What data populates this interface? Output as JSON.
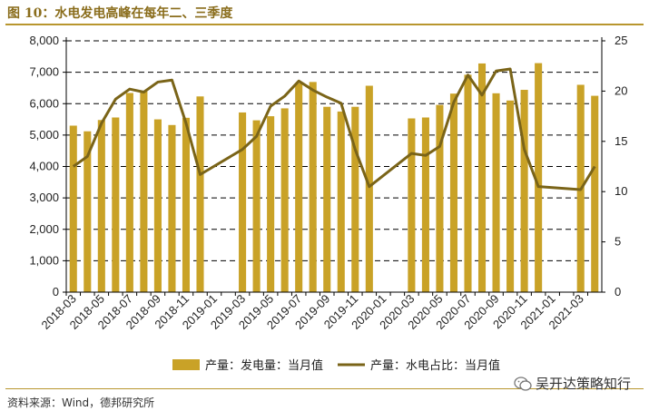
{
  "header": {
    "title": "图 10：水电发电高峰在每年二、三季度"
  },
  "footer": {
    "source": "资料来源：Wind，德邦研究所"
  },
  "watermark": {
    "text": "吴开达策略知行",
    "icon": "wechat-icon"
  },
  "colors": {
    "bar": "#c9a227",
    "line": "#7a6418",
    "accent": "#b8962e"
  },
  "chart_data": {
    "type": "bar",
    "title": "",
    "xlabel": "",
    "ylabel": "",
    "categories": [
      "2018-03",
      "2018-04",
      "2018-05",
      "2018-06",
      "2018-07",
      "2018-08",
      "2018-09",
      "2018-10",
      "2018-11",
      "2018-12",
      "2019-01",
      "2019-02",
      "2019-03",
      "2019-04",
      "2019-05",
      "2019-06",
      "2019-07",
      "2019-08",
      "2019-09",
      "2019-10",
      "2019-11",
      "2019-12",
      "2020-01",
      "2020-02",
      "2020-03",
      "2020-04",
      "2020-05",
      "2020-06",
      "2020-07",
      "2020-08",
      "2020-09",
      "2020-10",
      "2020-11",
      "2020-12",
      "2021-01",
      "2021-02",
      "2021-03",
      "2021-04"
    ],
    "x_tick_labels": [
      "2018-03",
      "2018-05",
      "2018-07",
      "2018-09",
      "2018-11",
      "2019-01",
      "2019-03",
      "2019-05",
      "2019-07",
      "2019-09",
      "2019-11",
      "2020-01",
      "2020-03",
      "2020-05",
      "2020-07",
      "2020-09",
      "2020-11",
      "2021-01",
      "2021-03"
    ],
    "ylim_left": [
      0,
      8000
    ],
    "yticks_left": [
      "0",
      "1,000",
      "2,000",
      "3,000",
      "4,000",
      "5,000",
      "6,000",
      "7,000",
      "8,000"
    ],
    "ylim_right": [
      0,
      25
    ],
    "yticks_right": [
      "0",
      "5",
      "10",
      "15",
      "20",
      "25"
    ],
    "grid": "horizontal-dashed",
    "legend_position": "bottom",
    "series": [
      {
        "name": "产量：发电量：当月值",
        "kind": "bar",
        "axis": "left",
        "values": [
          5300,
          5120,
          5480,
          5560,
          6340,
          6390,
          5500,
          5320,
          5550,
          6230,
          null,
          null,
          5720,
          5470,
          5600,
          5850,
          6650,
          6690,
          5900,
          5750,
          5900,
          6570,
          null,
          null,
          5530,
          5560,
          5960,
          6320,
          6920,
          7280,
          6330,
          6100,
          6440,
          7290,
          null,
          null,
          6600,
          6250
        ]
      },
      {
        "name": "产量：水电占比：当月值",
        "kind": "line",
        "axis": "right",
        "values": [
          12.5,
          13.5,
          16.8,
          19.2,
          20.2,
          19.9,
          20.9,
          21.1,
          16.8,
          11.7,
          null,
          null,
          14.2,
          15.5,
          18.5,
          19.5,
          21.0,
          20.1,
          19.4,
          18.8,
          14.2,
          10.5,
          null,
          null,
          13.8,
          13.6,
          14.5,
          18.9,
          21.6,
          19.6,
          22.0,
          22.2,
          14.2,
          10.5,
          null,
          null,
          10.2,
          12.5
        ]
      }
    ]
  }
}
